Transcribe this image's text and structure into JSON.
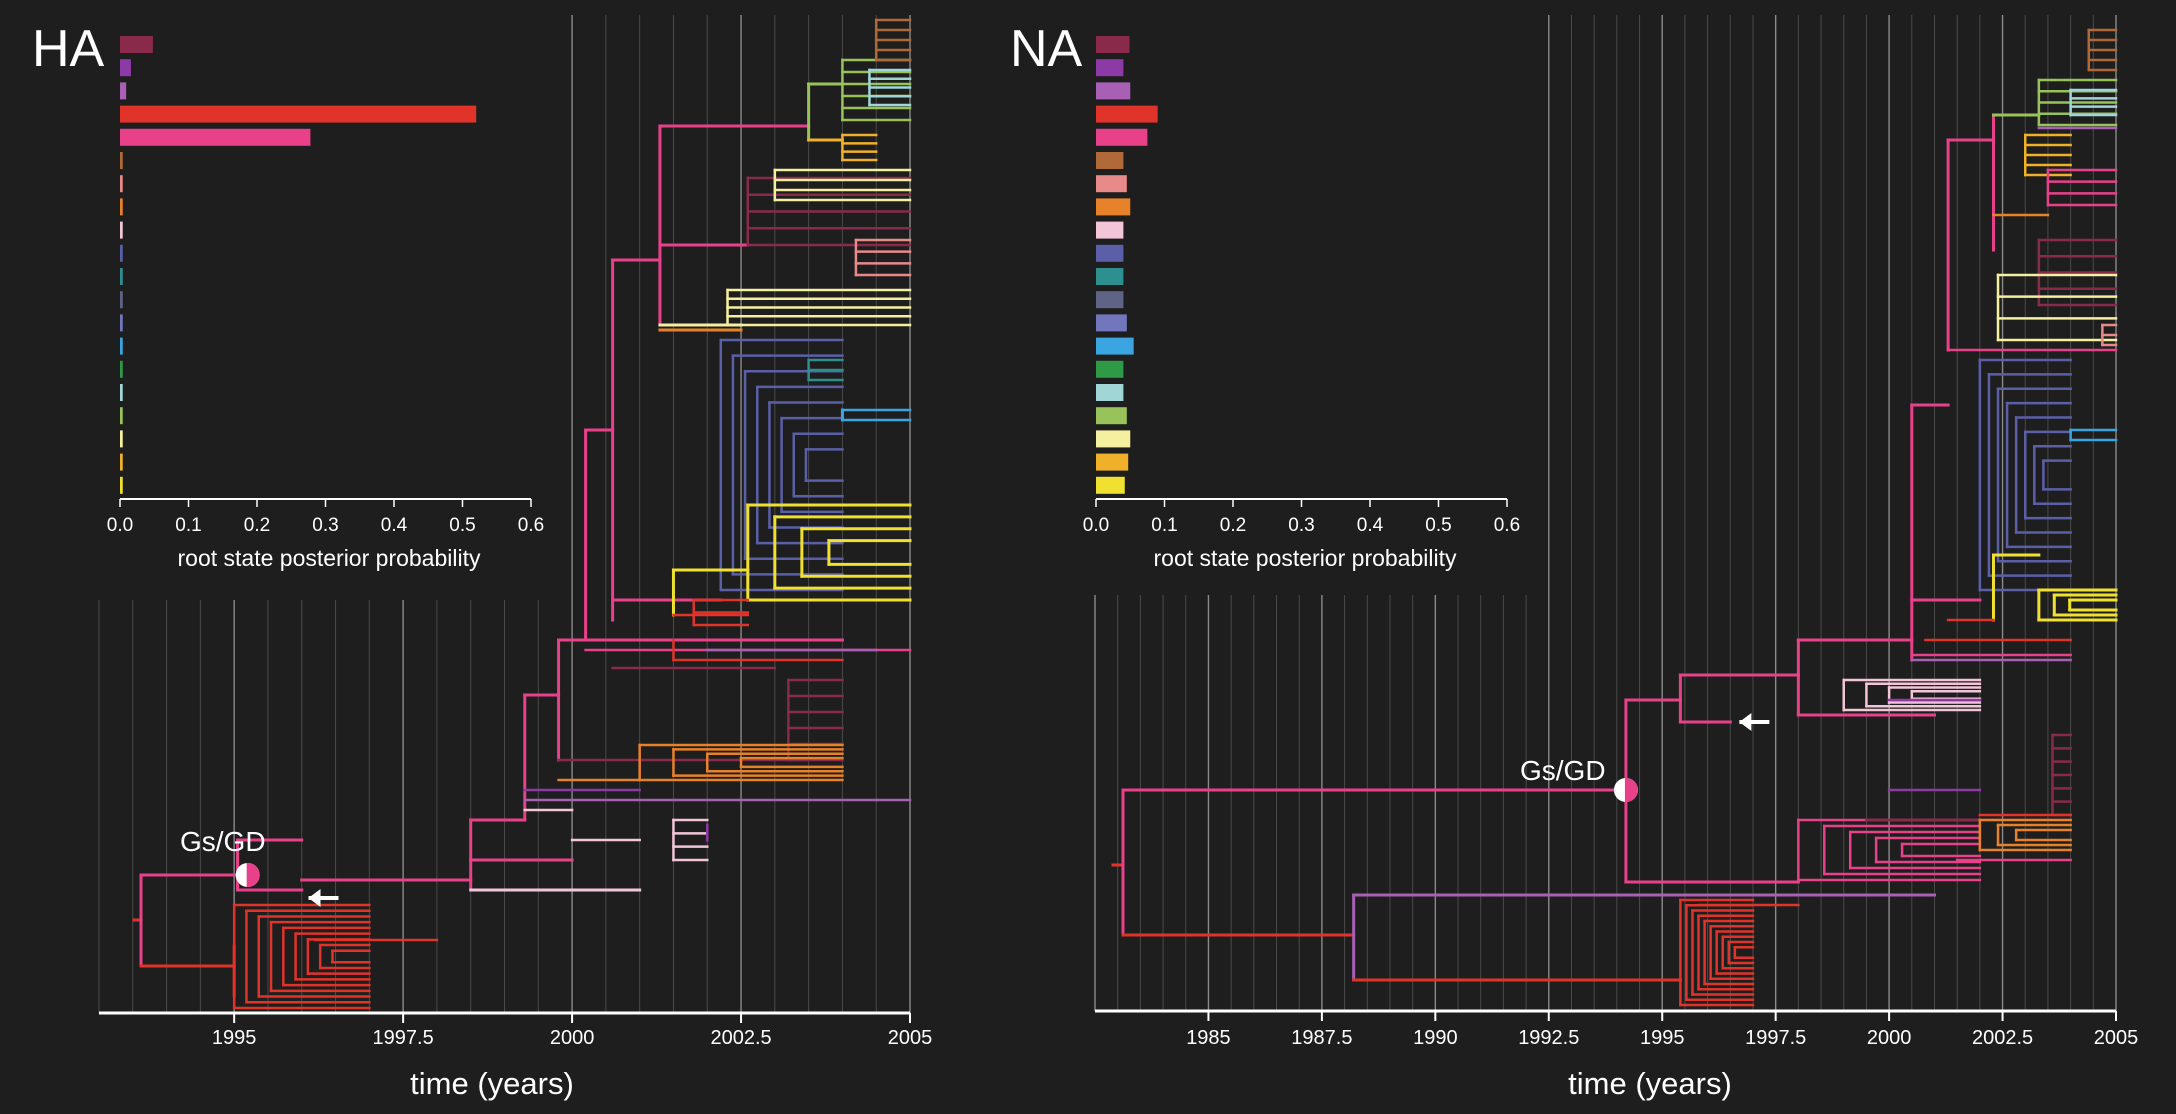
{
  "chart_data": [
    {
      "panel": "HA",
      "type": "bar",
      "inset": {
        "xlabel": "root state posterior probability",
        "xlim": [
          0,
          0.6
        ],
        "xticks": [
          "0.0",
          "0.1",
          "0.2",
          "0.3",
          "0.4",
          "0.5",
          "0.6"
        ],
        "colors": [
          "#8a2a4a",
          "#8e3aa6",
          "#a860b5",
          "#e0342b",
          "#e8418a",
          "#b06a3a",
          "#e88a8a",
          "#e8822a",
          "#f2c6d8",
          "#5b5fa8",
          "#2e8f8f",
          "#5f6487",
          "#7277bd",
          "#3aa5e0",
          "#2f9a45",
          "#a0d6d6",
          "#98c25a",
          "#f4f0a0",
          "#f0b02a",
          "#f0e030"
        ],
        "values": [
          0.048,
          0.016,
          0.009,
          0.52,
          0.278,
          0.004,
          0.004,
          0.004,
          0.004,
          0.004,
          0.004,
          0.004,
          0.004,
          0.004,
          0.004,
          0.004,
          0.004,
          0.004,
          0.004,
          0.004
        ]
      },
      "time_axis": {
        "xlabel": "time (years)",
        "xlim": [
          1993.0,
          2005.0
        ],
        "ticks": [
          "1995",
          "1997.5",
          "2000",
          "2002.5",
          "2005"
        ]
      },
      "annotation": "Gs/GD"
    },
    {
      "panel": "NA",
      "type": "bar",
      "inset": {
        "xlabel": "root state posterior probability",
        "xlim": [
          0,
          0.6
        ],
        "xticks": [
          "0.0",
          "0.1",
          "0.2",
          "0.3",
          "0.4",
          "0.5",
          "0.6"
        ],
        "colors": [
          "#8a2a4a",
          "#8e3aa6",
          "#a860b5",
          "#e0342b",
          "#e8418a",
          "#b06a3a",
          "#e88a8a",
          "#e8822a",
          "#f2c6d8",
          "#5b5fa8",
          "#2e8f8f",
          "#5f6487",
          "#7277bd",
          "#3aa5e0",
          "#2f9a45",
          "#a0d6d6",
          "#98c25a",
          "#f4f0a0",
          "#f0b02a",
          "#f0e030"
        ],
        "values": [
          0.049,
          0.04,
          0.05,
          0.09,
          0.075,
          0.04,
          0.045,
          0.05,
          0.04,
          0.04,
          0.04,
          0.04,
          0.045,
          0.055,
          0.04,
          0.04,
          0.045,
          0.05,
          0.047,
          0.042
        ]
      },
      "time_axis": {
        "xlabel": "time (years)",
        "xlim": [
          1982.5,
          2005.0
        ],
        "ticks": [
          "1985",
          "1987.5",
          "1990",
          "1992.5",
          "1995",
          "1997.5",
          "2000",
          "2002.5",
          "2005"
        ]
      },
      "annotation": "Gs/GD"
    }
  ]
}
